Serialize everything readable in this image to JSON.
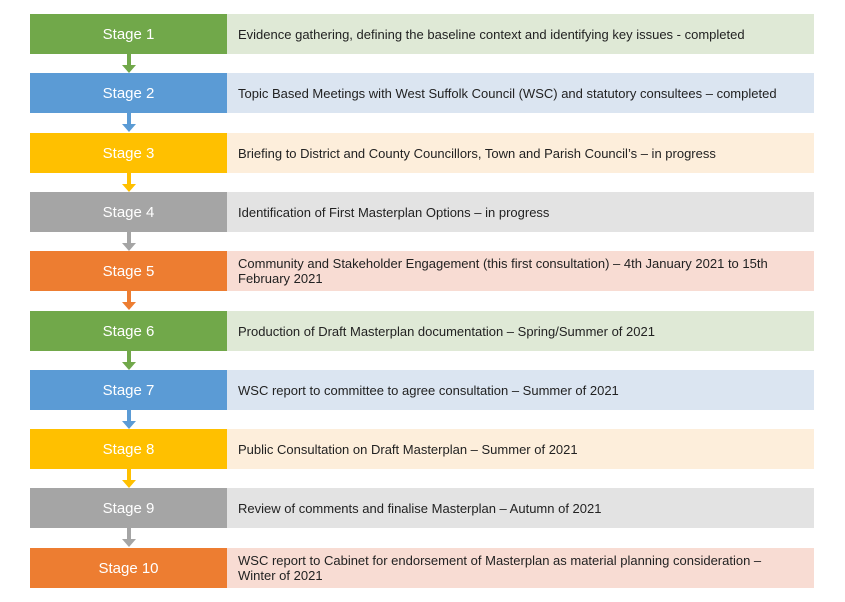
{
  "colors": {
    "green": {
      "main": "#71a84a",
      "light": "#dfe9d6"
    },
    "blue": {
      "main": "#5b9bd5",
      "light": "#dbe5f1"
    },
    "yellow": {
      "main": "#ffc000",
      "light": "#fdeedb"
    },
    "gray": {
      "main": "#a5a5a5",
      "light": "#e3e3e3"
    },
    "orange": {
      "main": "#ed7d31",
      "light": "#f8dcd3"
    }
  },
  "stages": [
    {
      "label": "Stage 1",
      "description": "Evidence gathering, defining the baseline context and identifying key issues - completed",
      "color": "green"
    },
    {
      "label": "Stage 2",
      "description": "Topic Based Meetings with West Suffolk Council (WSC) and statutory consultees – completed",
      "color": "blue"
    },
    {
      "label": "Stage 3",
      "description": "Briefing to District and County Councillors, Town and Parish Council’s – in progress",
      "color": "yellow"
    },
    {
      "label": "Stage 4",
      "description": "Identification of First Masterplan Options – in progress",
      "color": "gray"
    },
    {
      "label": "Stage 5",
      "description": "Community and Stakeholder Engagement (this first consultation) – 4th January 2021 to 15th February 2021",
      "color": "orange"
    },
    {
      "label": "Stage 6",
      "description": "Production of Draft Masterplan documentation – Spring/Summer of 2021",
      "color": "green"
    },
    {
      "label": "Stage 7",
      "description": "WSC report to committee to agree consultation – Summer of 2021",
      "color": "blue"
    },
    {
      "label": "Stage 8",
      "description": "Public Consultation on Draft Masterplan – Summer of 2021",
      "color": "yellow"
    },
    {
      "label": "Stage 9",
      "description": "Review of comments and finalise Masterplan – Autumn of 2021",
      "color": "gray"
    },
    {
      "label": "Stage 10",
      "description": "WSC report to Cabinet for endorsement of Masterplan as material planning consideration – Winter of 2021",
      "color": "orange"
    }
  ]
}
